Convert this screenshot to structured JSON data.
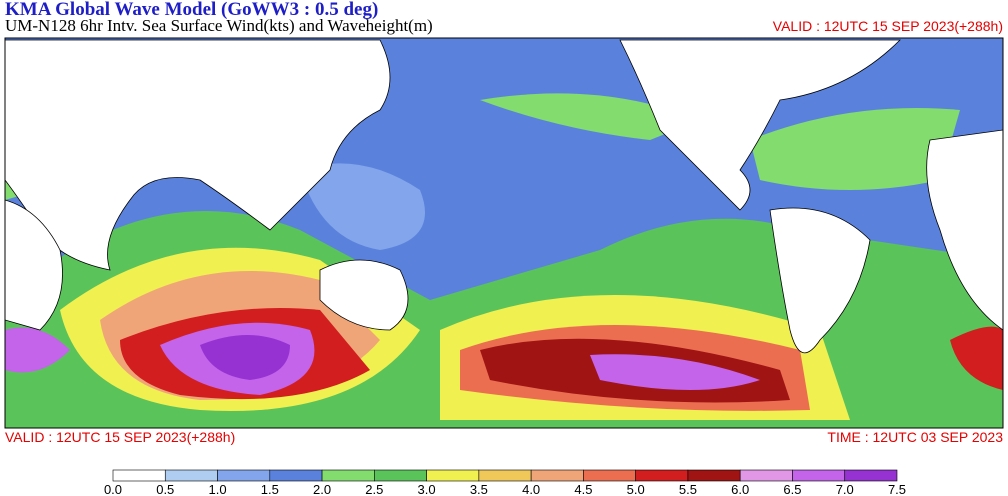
{
  "header": {
    "title": "KMA  Global Wave Model (GoWW3 : 0.5 deg)",
    "subtitle": "UM-N128  6hr Intv. Sea Surface Wind(kts) and Waveheight(m)",
    "valid": "VALID : 12UTC 15 SEP 2023(+288h)"
  },
  "footer": {
    "valid": "VALID : 12UTC 15 SEP 2023(+288h)",
    "time": "TIME : 12UTC 03 SEP 2023"
  },
  "colorbar": {
    "labels": [
      "0.0",
      "0.5",
      "1.0",
      "1.5",
      "2.0",
      "2.5",
      "3.0",
      "3.5",
      "4.0",
      "4.5",
      "5.0",
      "5.5",
      "6.0",
      "6.5",
      "7.0",
      "7.5"
    ],
    "colors": [
      "#ffffff",
      "#afcdf0",
      "#82a5eb",
      "#5a82dc",
      "#82dc6e",
      "#5ac35a",
      "#f0f050",
      "#f0c85a",
      "#f0a578",
      "#eb6e50",
      "#d21e1e",
      "#a01414",
      "#e196e6",
      "#c364eb",
      "#9632d2"
    ]
  }
}
